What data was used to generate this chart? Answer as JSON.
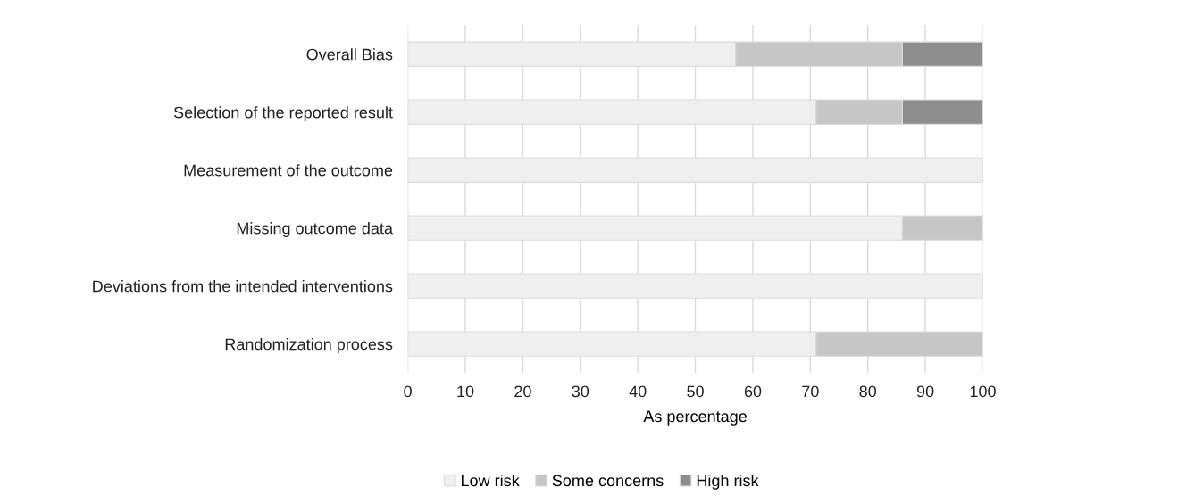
{
  "chart_data": {
    "type": "bar",
    "orientation": "horizontal",
    "stacked": true,
    "categories": [
      "Overall Bias",
      "Selection of the reported result",
      "Measurement of the outcome",
      "Missing outcome data",
      "Deviations from the intended interventions",
      "Randomization process"
    ],
    "series": [
      {
        "name": "Low risk",
        "color": "#efefef",
        "values": [
          57,
          71,
          100,
          86,
          100,
          71
        ]
      },
      {
        "name": "Some concerns",
        "color": "#c6c6c6",
        "values": [
          29,
          15,
          null,
          14,
          null,
          29
        ]
      },
      {
        "name": "High risk",
        "color": "#8e8e8e",
        "values": [
          14,
          14,
          null,
          null,
          null,
          null
        ]
      }
    ],
    "xlabel": "As percentage",
    "xlim": [
      0,
      100
    ],
    "xticks": [
      0,
      10,
      20,
      30,
      40,
      50,
      60,
      70,
      80,
      90,
      100
    ],
    "grid": "x",
    "legend": "bottom"
  }
}
